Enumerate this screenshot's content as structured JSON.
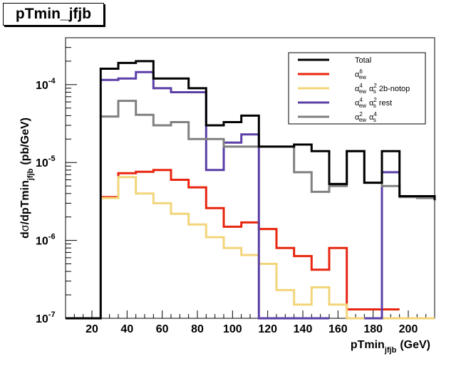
{
  "chart_data": {
    "type": "histogram-step",
    "title": "pTmin_jfjb",
    "xlabel_main": "pTmin",
    "xlabel_sub": "jfjb",
    "xlabel_unit": "(GeV)",
    "ylabel_prefix": "d",
    "ylabel_sigma": "σ",
    "ylabel_mid": "/dpTmin",
    "ylabel_sub": "jfjb",
    "ylabel_unit": "(pb/GeV)",
    "xlim": [
      5,
      215
    ],
    "ylim": [
      1e-07,
      0.0004
    ],
    "y_scale": "log",
    "x_ticks": [
      "20",
      "40",
      "60",
      "80",
      "100",
      "120",
      "140",
      "160",
      "180",
      "200"
    ],
    "y_tick_base": "10",
    "y_tick_exps": [
      "-7",
      "-6",
      "-5",
      "-4"
    ],
    "bin_edges": [
      5,
      15,
      25,
      35,
      45,
      55,
      65,
      75,
      85,
      95,
      105,
      115,
      125,
      135,
      145,
      155,
      165,
      175,
      185,
      195,
      205,
      215
    ],
    "legend_position": "top-right",
    "series": [
      {
        "name": "Total",
        "color": "#000000",
        "values": [
          1e-07,
          1e-07,
          0.00016,
          0.00019,
          0.0002,
          0.00012,
          0.00012,
          9e-05,
          3e-05,
          3.3e-05,
          4e-05,
          1.6e-05,
          1.6e-05,
          1.7e-05,
          1.4e-05,
          5.3e-06,
          1.4e-05,
          5.5e-06,
          1.4e-05,
          3.7e-06,
          3.7e-06,
          3.3e-06
        ]
      },
      {
        "name": "αew6",
        "color": "#e8250f",
        "values": [
          null,
          null,
          3.6e-06,
          7.3e-06,
          7.6e-06,
          8e-06,
          6e-06,
          4.8e-06,
          2.6e-06,
          1.5e-06,
          1.7e-06,
          1.4e-06,
          8e-07,
          6.3e-07,
          4.2e-07,
          8e-07,
          1.3e-07,
          1.3e-07,
          1.3e-07,
          null,
          null,
          null
        ]
      },
      {
        "name": "αew4 αs2 2b-notop",
        "color": "#f2d57a",
        "values": [
          null,
          null,
          3.5e-06,
          6.5e-06,
          4e-06,
          3e-06,
          2.2e-06,
          1.6e-06,
          1.1e-06,
          8e-07,
          6.5e-07,
          5e-07,
          2.3e-07,
          1.5e-07,
          2.5e-07,
          1.5e-07,
          1e-07,
          1e-07,
          1e-07,
          1e-07,
          1e-07,
          1e-07
        ]
      },
      {
        "name": "αew4 αs2 rest",
        "color": "#5b3fa7",
        "values": [
          null,
          null,
          0.000115,
          0.00012,
          0.000145,
          9e-05,
          8e-05,
          8e-05,
          8e-06,
          1.8e-05,
          2.3e-05,
          1e-07,
          1e-07,
          1e-07,
          1e-07,
          null,
          null,
          1e-07,
          7.5e-06,
          null,
          null,
          null
        ]
      },
      {
        "name": "αew2 αs4",
        "color": "#808080",
        "values": [
          null,
          null,
          3.9e-05,
          6.2e-05,
          4.1e-05,
          3e-05,
          3.3e-05,
          2e-05,
          2e-05,
          1.6e-05,
          1.6e-05,
          1.6e-05,
          1.6e-05,
          7.5e-06,
          4.2e-06,
          5e-06,
          1.4e-05,
          5.5e-06,
          5e-06,
          3.6e-06,
          3.5e-06,
          3.2e-06
        ]
      }
    ],
    "legend": [
      {
        "label": "Total",
        "color": "#000000",
        "parts": [
          {
            "t": "Total"
          }
        ]
      },
      {
        "label": "αew6",
        "color": "#e8250f",
        "parts": [
          {
            "t": "α"
          },
          {
            "b": "ew",
            "p": "6"
          }
        ]
      },
      {
        "label": "αew4 αs2 2b-notop",
        "color": "#f2d57a",
        "parts": [
          {
            "t": "α"
          },
          {
            "b": "ew",
            "p": "4"
          },
          {
            "t": " α"
          },
          {
            "b": "s",
            "p": "2"
          },
          {
            "t": " 2b-notop"
          }
        ]
      },
      {
        "label": "αew4 αs2 rest",
        "color": "#5b3fa7",
        "parts": [
          {
            "t": "α"
          },
          {
            "b": "ew",
            "p": "4"
          },
          {
            "t": " α"
          },
          {
            "b": "s",
            "p": "2"
          },
          {
            "t": " rest"
          }
        ]
      },
      {
        "label": "αew2 αs4",
        "color": "#808080",
        "parts": [
          {
            "t": "α"
          },
          {
            "b": "ew",
            "p": "2"
          },
          {
            "t": " α"
          },
          {
            "b": "s",
            "p": "4"
          }
        ]
      }
    ]
  }
}
